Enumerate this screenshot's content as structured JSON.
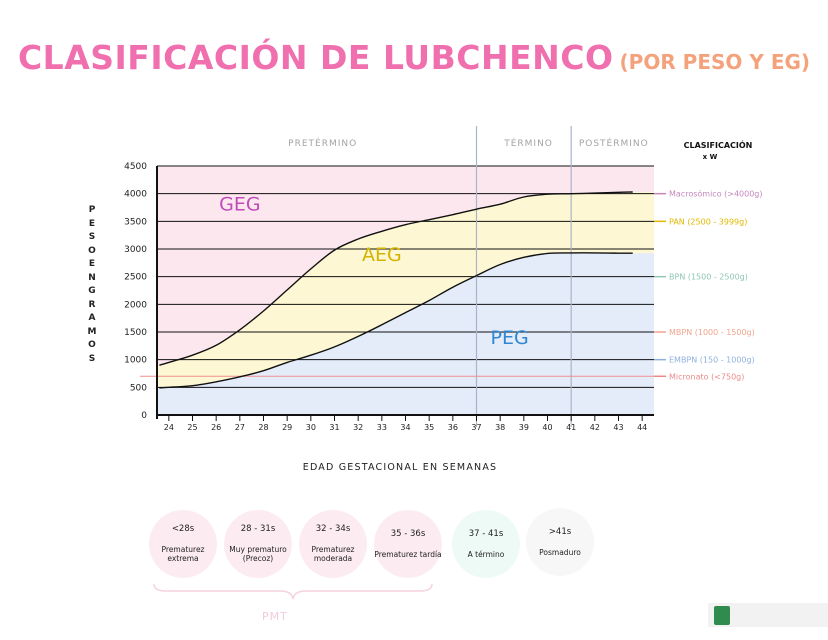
{
  "title": {
    "main": "CLASIFICACIÓN DE LUBCHENCO",
    "sub": "(POR PESO Y EG)"
  },
  "colors": {
    "title": "#f06fae",
    "subtitle": "#f4a27c",
    "zone_geg": "#fde7ef",
    "zone_aeg": "#fdf7d3",
    "zone_peg": "#e4ecfa",
    "period_divider": "#aab4c8",
    "grid": "#111111"
  },
  "chart_data": {
    "type": "area",
    "title": "CLASIFICACIÓN DE LUBCHENCO",
    "xlabel": "EDAD GESTACIONAL EN SEMANAS",
    "ylabel": "PESO EN GRAMOS",
    "x": [
      24,
      25,
      26,
      27,
      28,
      29,
      30,
      31,
      32,
      33,
      34,
      35,
      36,
      37,
      38,
      39,
      40,
      41,
      42,
      43,
      44
    ],
    "xlim": [
      23.5,
      44.5
    ],
    "ylim": [
      0,
      4500
    ],
    "y_ticks": [
      0,
      500,
      1000,
      1500,
      2000,
      2500,
      3000,
      3500,
      4000,
      4500
    ],
    "grid": true,
    "series": [
      {
        "name": "p90",
        "x": [
          23.6,
          24,
          25,
          26,
          27,
          28,
          29,
          30,
          31,
          32,
          33,
          34,
          35,
          36,
          37,
          38,
          39,
          40,
          41,
          42,
          43,
          43.6
        ],
        "values": [
          900,
          950,
          1080,
          1260,
          1540,
          1880,
          2260,
          2640,
          2980,
          3180,
          3320,
          3440,
          3530,
          3620,
          3720,
          3810,
          3940,
          3990,
          4000,
          4010,
          4025,
          4030
        ]
      },
      {
        "name": "p10",
        "x": [
          23.6,
          24,
          25,
          26,
          27,
          28,
          29,
          30,
          31,
          32,
          33,
          34,
          35,
          36,
          37,
          38,
          39,
          40,
          41,
          42,
          43,
          43.6
        ],
        "values": [
          490,
          500,
          530,
          600,
          690,
          800,
          950,
          1080,
          1230,
          1420,
          1630,
          1850,
          2070,
          2310,
          2520,
          2720,
          2850,
          2920,
          2930,
          2930,
          2925,
          2925
        ]
      }
    ],
    "zones": [
      {
        "label": "GEG",
        "x": 27,
        "y": 3700,
        "color": "#bf4bba"
      },
      {
        "label": "AEG",
        "x": 33,
        "y": 2780,
        "color": "#d6b300"
      },
      {
        "label": "PEG",
        "x": 38.4,
        "y": 1280,
        "color": "#2f86d3"
      }
    ],
    "periods": [
      {
        "label": "PRETÉRMINO",
        "x": 30.5
      },
      {
        "label": "TÉRMINO",
        "x": 39.2
      },
      {
        "label": "POSTÉRMINO",
        "x": 42.8
      }
    ],
    "period_dividers": [
      37,
      41
    ],
    "micronato_line": 700,
    "weight_classes": {
      "header": [
        "CLASIFICACIÓN",
        "x W"
      ],
      "items": [
        {
          "label": "Macrosómico (>4000g)",
          "y": 4000,
          "color": "#c487bd"
        },
        {
          "label": "PAN  (2500 - 3999g)",
          "y": 3500,
          "color": "#e0b800"
        },
        {
          "label": "BPN  (1500 - 2500g)",
          "y": 2500,
          "color": "#8fc7b1"
        },
        {
          "label": "MBPN  (1000 - 1500g)",
          "y": 1500,
          "color": "#f0a58e"
        },
        {
          "label": "EMBPN  (150 - 1000g)",
          "y": 1000,
          "color": "#8fb0e0"
        },
        {
          "label": "Micronato  (<750g)",
          "y": 700,
          "color": "#e98a8a"
        }
      ]
    }
  },
  "age_categories": [
    {
      "range": "<28s",
      "label": "Prematurez extrema",
      "color": "#fcecf2"
    },
    {
      "range": "28 - 31s",
      "label": "Muy prematuro (Precoz)",
      "color": "#fcecf2"
    },
    {
      "range": "32 - 34s",
      "label": "Prematurez moderada",
      "color": "#fcecf2"
    },
    {
      "range": "35 - 36s",
      "label": "Prematurez tardía",
      "color": "#fcecf2"
    },
    {
      "range": "37 - 41s",
      "label": "A término",
      "color": "#eefaf5"
    },
    {
      "range": ">41s",
      "label": "Posmaduro",
      "color": "#f7f7f7"
    }
  ],
  "brace_label": "PMT"
}
